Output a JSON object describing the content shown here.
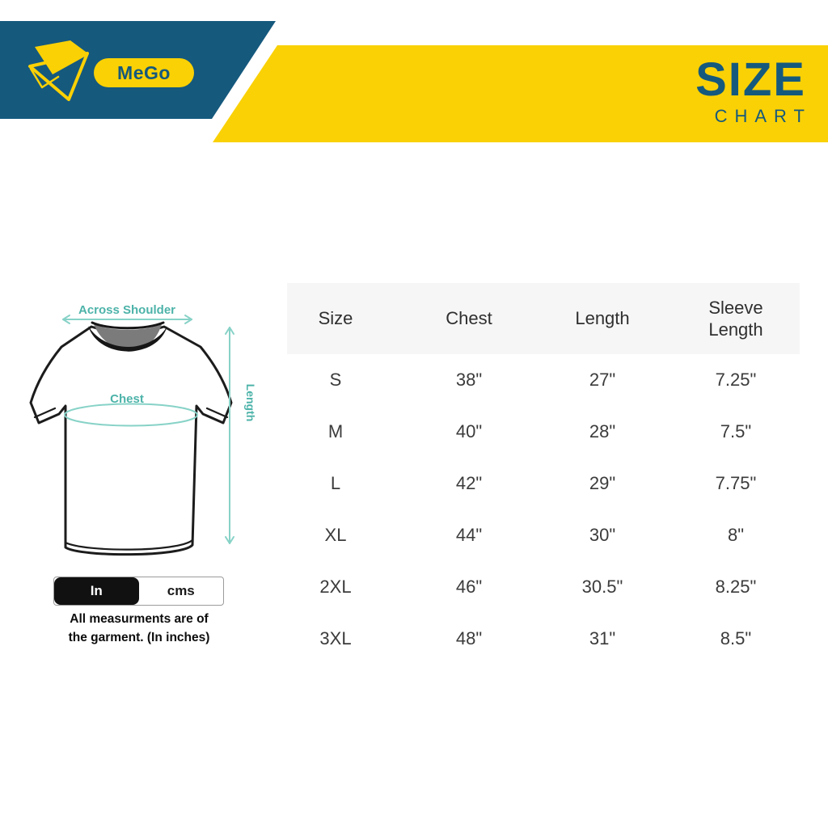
{
  "brand": {
    "logo_text": "MeGo"
  },
  "header": {
    "title_top": "SIZE",
    "title_bottom": "CHART"
  },
  "diagram": {
    "across_shoulder_label": "Across Shoulder",
    "chest_label": "Chest",
    "length_label": "Length"
  },
  "unit_toggle": {
    "options": [
      {
        "label": "In",
        "selected": true
      },
      {
        "label": "cms",
        "selected": false
      }
    ]
  },
  "note": {
    "line1": "All measurments are of",
    "line2": "the garment. (In inches)"
  },
  "colors": {
    "brand_blue": "#15597d",
    "brand_yellow": "#fad105",
    "accent_teal": "#4db3a9",
    "accent_teal_light": "#87d2c7",
    "table_header_bg": "#f6f6f6"
  },
  "chart_data": {
    "type": "table",
    "title": "SIZE CHART",
    "units": "inches",
    "columns": [
      "Size",
      "Chest",
      "Length",
      "Sleeve Length"
    ],
    "rows": [
      [
        "S",
        "38\"",
        "27\"",
        "7.25\""
      ],
      [
        "M",
        "40\"",
        "28\"",
        "7.5\""
      ],
      [
        "L",
        "42\"",
        "29\"",
        "7.75\""
      ],
      [
        "XL",
        "44\"",
        "30\"",
        "8\""
      ],
      [
        "2XL",
        "46\"",
        "30.5\"",
        "8.25\""
      ],
      [
        "3XL",
        "48\"",
        "31\"",
        "8.5\""
      ]
    ]
  }
}
